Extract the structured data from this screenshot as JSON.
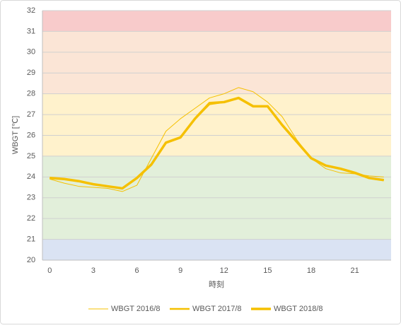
{
  "chart_data": {
    "type": "line",
    "x_label": "時刻",
    "y_label": "WBGT [℃]",
    "x": [
      0,
      1,
      2,
      3,
      4,
      5,
      6,
      7,
      8,
      9,
      10,
      11,
      12,
      13,
      14,
      15,
      16,
      17,
      18,
      19,
      20,
      21,
      22,
      23
    ],
    "xlim": [
      -0.5,
      23.5
    ],
    "xticks": [
      0,
      3,
      6,
      9,
      12,
      15,
      18,
      21
    ],
    "ylim": [
      20,
      32
    ],
    "yticks": [
      20,
      21,
      22,
      23,
      24,
      25,
      26,
      27,
      28,
      29,
      30,
      31,
      32
    ],
    "grid": true,
    "legend": "bottom",
    "bands": [
      {
        "from": 20,
        "to": 21,
        "color": "#dae3f3"
      },
      {
        "from": 21,
        "to": 25,
        "color": "#e2efda"
      },
      {
        "from": 25,
        "to": 28,
        "color": "#fff2cc"
      },
      {
        "from": 28,
        "to": 31,
        "color": "#fbe5d6"
      },
      {
        "from": 31,
        "to": 32,
        "color": "#f8cbcb"
      }
    ],
    "series": [
      {
        "name": "WBGT 2016/8",
        "color": "#f5c000",
        "width": 1,
        "values": [
          23.9,
          23.7,
          23.55,
          23.5,
          23.45,
          23.3,
          23.6,
          24.9,
          26.2,
          26.8,
          27.3,
          27.8,
          28.0,
          28.3,
          28.1,
          27.6,
          26.9,
          25.8,
          24.9,
          24.4,
          24.2,
          24.15,
          24.05,
          24.0
        ]
      },
      {
        "name": "WBGT 2017/8",
        "color": "#f5c000",
        "width": 2.5,
        "values": [
          23.95,
          23.9,
          23.8,
          23.65,
          23.55,
          23.45,
          23.95,
          24.6,
          25.65,
          25.9,
          26.8,
          27.5,
          27.6,
          27.8,
          27.4,
          27.4,
          26.5,
          25.7,
          24.9,
          24.55,
          24.4,
          24.2,
          23.95,
          23.85
        ]
      },
      {
        "name": "WBGT 2018/8",
        "color": "#f5c000",
        "width": 3.5,
        "values": [
          23.95,
          23.9,
          23.8,
          23.65,
          23.55,
          23.45,
          23.95,
          24.6,
          25.65,
          25.9,
          26.8,
          27.55,
          27.6,
          27.8,
          27.4,
          27.4,
          26.5,
          25.7,
          24.9,
          24.55,
          24.4,
          24.2,
          23.95,
          23.85
        ]
      }
    ]
  }
}
